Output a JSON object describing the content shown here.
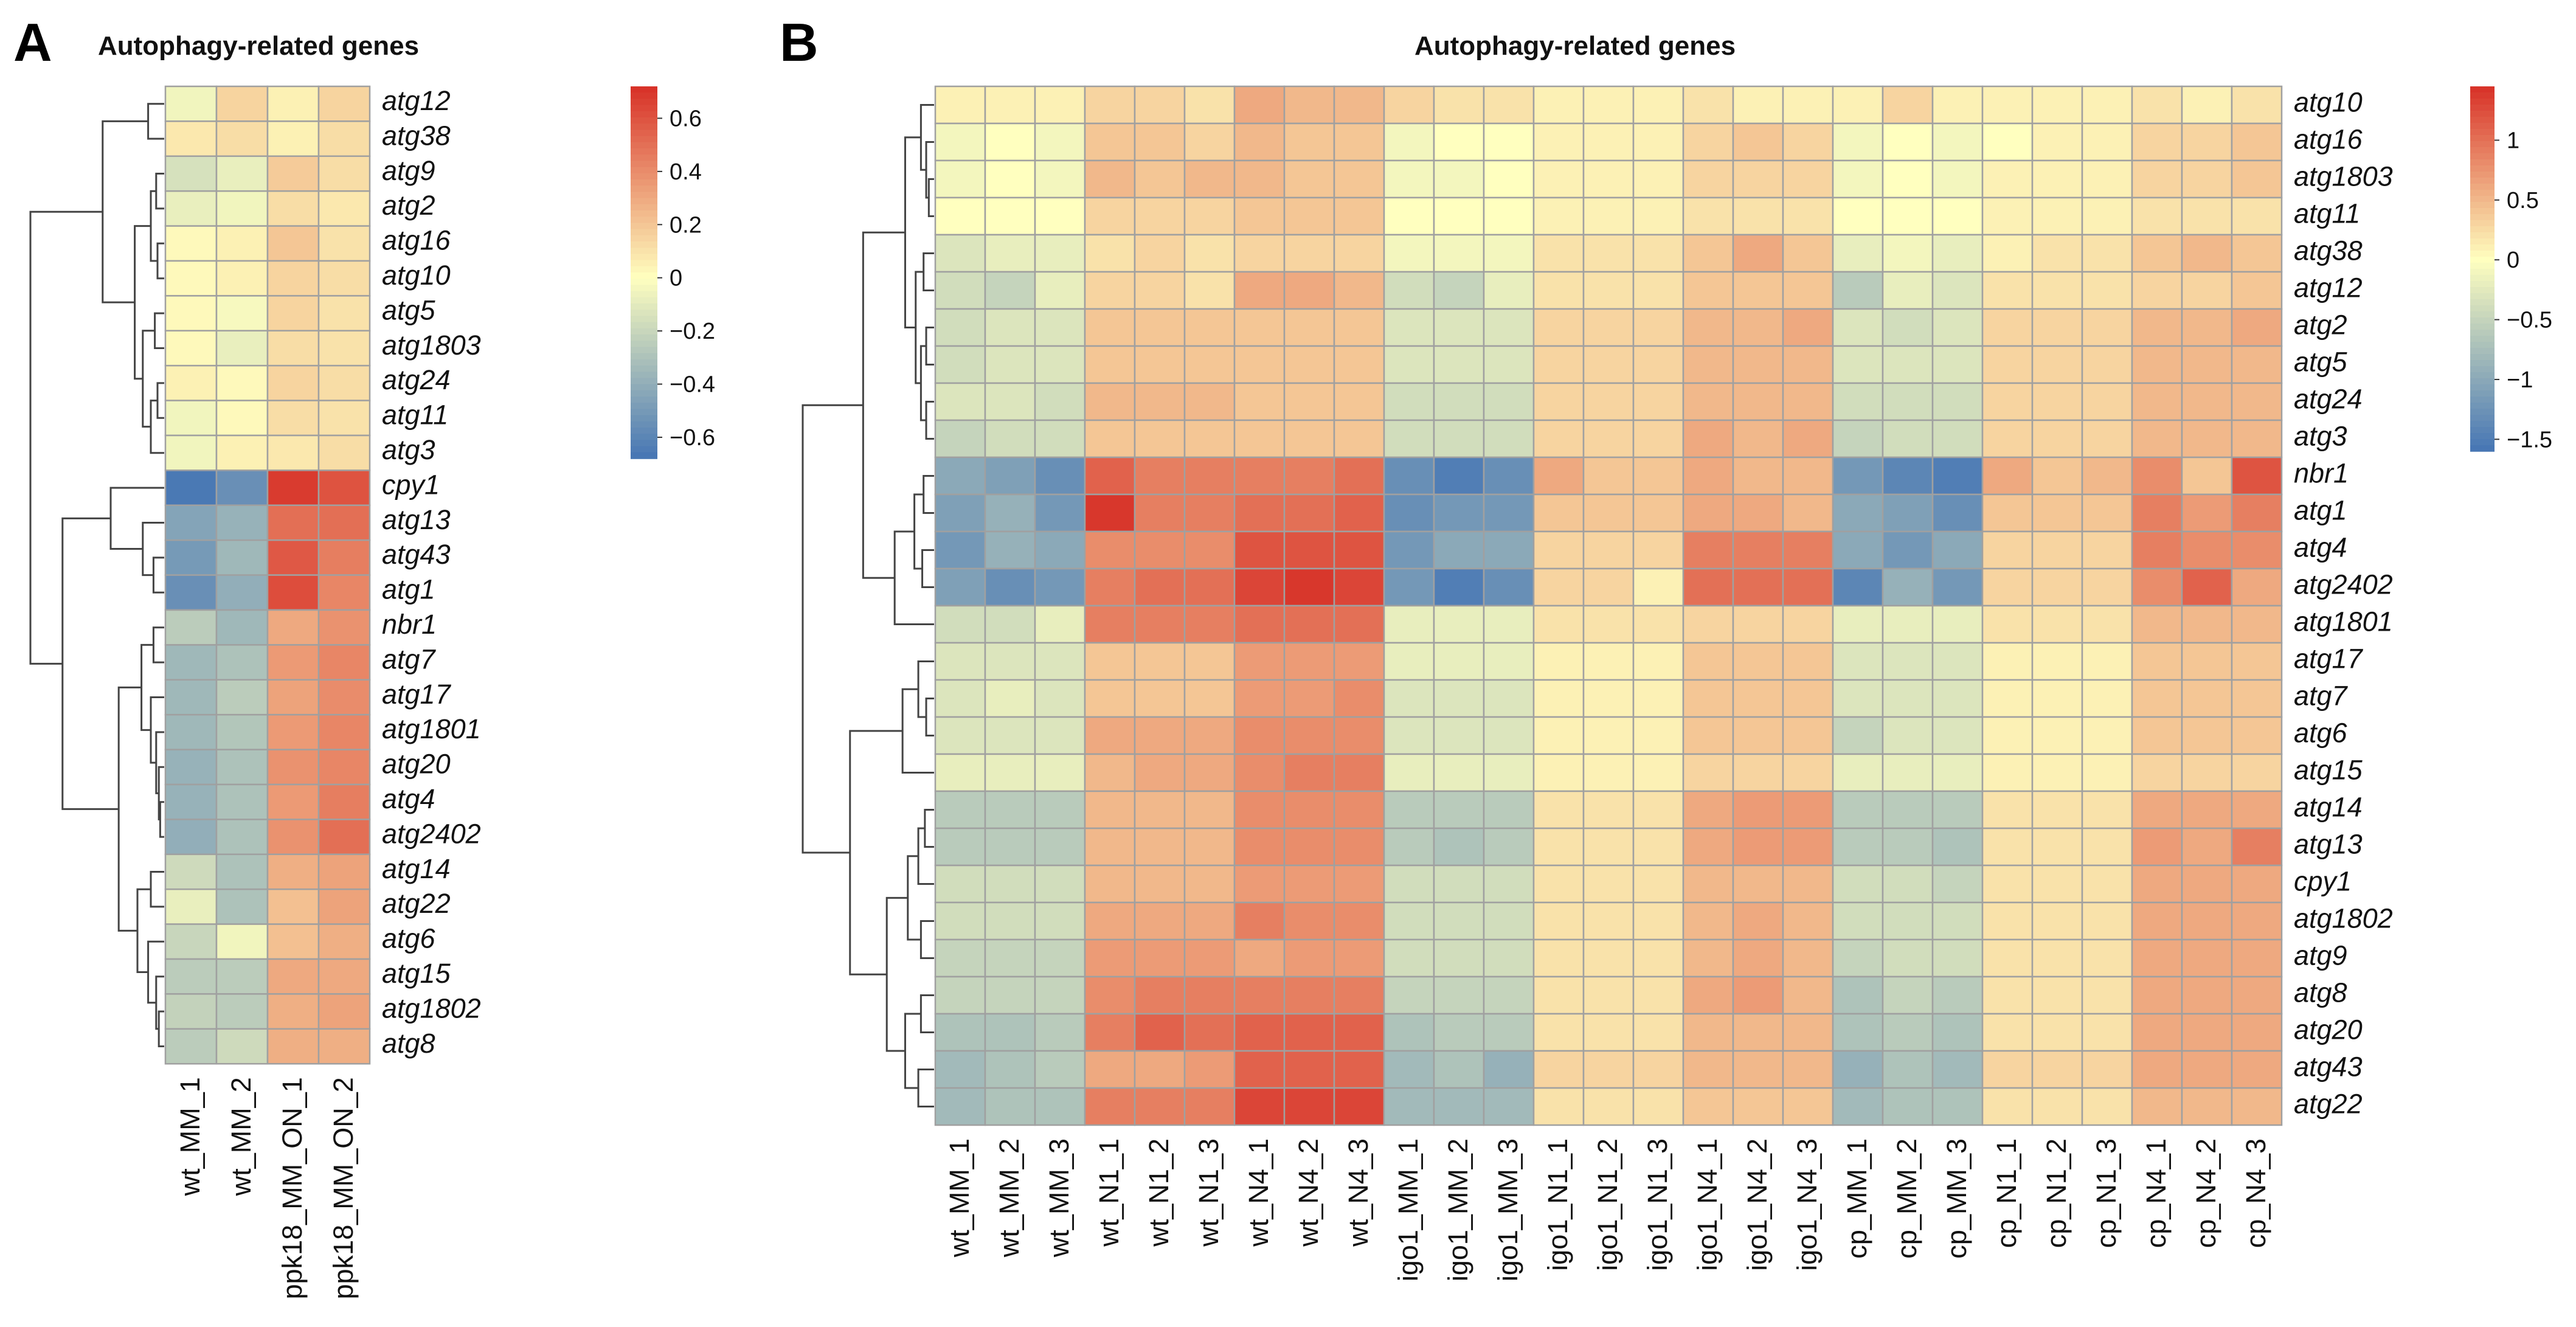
{
  "colors": {
    "low": "#4575b4",
    "mid": "#ffffbf",
    "high": "#d73027",
    "grid": "#a0a0a0",
    "dendro": "#444444"
  },
  "chart_data": [
    {
      "panel": "A",
      "type": "heatmap",
      "title": "Autophagy-related genes",
      "columns": [
        "wt_MM_1",
        "wt_MM_2",
        "ppk18_MM_ON_1",
        "ppk18_MM_ON_2"
      ],
      "rows": [
        "atg12",
        "atg38",
        "atg9",
        "atg2",
        "atg16",
        "atg10",
        "atg5",
        "atg1803",
        "atg24",
        "atg11",
        "atg3",
        "cpy1",
        "atg13",
        "atg43",
        "atg1",
        "nbr1",
        "atg7",
        "atg17",
        "atg1801",
        "atg20",
        "atg4",
        "atg2402",
        "atg14",
        "atg22",
        "atg6",
        "atg15",
        "atg1802",
        "atg8"
      ],
      "values": [
        [
          -0.05,
          0.15,
          0.05,
          0.15
        ],
        [
          0.08,
          0.12,
          0.05,
          0.12
        ],
        [
          -0.15,
          -0.08,
          0.18,
          0.12
        ],
        [
          -0.08,
          -0.05,
          0.12,
          0.08
        ],
        [
          0.02,
          0.05,
          0.2,
          0.1
        ],
        [
          0.02,
          0.05,
          0.15,
          0.12
        ],
        [
          0.02,
          -0.03,
          0.15,
          0.1
        ],
        [
          0.02,
          -0.08,
          0.12,
          0.1
        ],
        [
          0.05,
          0.02,
          0.15,
          0.12
        ],
        [
          -0.05,
          0.02,
          0.12,
          0.1
        ],
        [
          -0.05,
          0.05,
          0.08,
          0.12
        ],
        [
          -0.66,
          -0.55,
          0.68,
          0.6
        ],
        [
          -0.45,
          -0.38,
          0.5,
          0.5
        ],
        [
          -0.5,
          -0.35,
          0.58,
          0.45
        ],
        [
          -0.55,
          -0.4,
          0.62,
          0.42
        ],
        [
          -0.25,
          -0.35,
          0.3,
          0.38
        ],
        [
          -0.35,
          -0.3,
          0.35,
          0.42
        ],
        [
          -0.35,
          -0.25,
          0.32,
          0.4
        ],
        [
          -0.35,
          -0.28,
          0.35,
          0.42
        ],
        [
          -0.38,
          -0.3,
          0.38,
          0.42
        ],
        [
          -0.38,
          -0.3,
          0.35,
          0.45
        ],
        [
          -0.4,
          -0.3,
          0.38,
          0.5
        ],
        [
          -0.18,
          -0.3,
          0.28,
          0.32
        ],
        [
          -0.08,
          -0.3,
          0.22,
          0.32
        ],
        [
          -0.2,
          -0.05,
          0.22,
          0.28
        ],
        [
          -0.25,
          -0.25,
          0.3,
          0.3
        ],
        [
          -0.22,
          -0.25,
          0.28,
          0.32
        ],
        [
          -0.25,
          -0.18,
          0.28,
          0.28
        ]
      ],
      "scale": {
        "min": -0.68,
        "max": 0.72,
        "ticks": [
          0.6,
          0.4,
          0.2,
          0,
          -0.2,
          -0.4,
          -0.6
        ],
        "tick_labels": [
          "0.6",
          "0.4",
          "0.2",
          "0",
          "−0.2",
          "−0.4",
          "−0.6"
        ]
      }
    },
    {
      "panel": "B",
      "type": "heatmap",
      "title": "Autophagy-related genes",
      "columns": [
        "wt_MM_1",
        "wt_MM_2",
        "wt_MM_3",
        "wt_N1_1",
        "wt_N1_2",
        "wt_N1_3",
        "wt_N4_1",
        "wt_N4_2",
        "wt_N4_3",
        "igo1_MM_1",
        "igo1_MM_2",
        "igo1_MM_3",
        "igo1_N1_1",
        "igo1_N1_2",
        "igo1_N1_3",
        "igo1_N4_1",
        "igo1_N4_2",
        "igo1_N4_3",
        "cp_MM_1",
        "cp_MM_2",
        "cp_MM_3",
        "cp_N1_1",
        "cp_N1_2",
        "cp_N1_3",
        "cp_N4_1",
        "cp_N4_2",
        "cp_N4_3"
      ],
      "rows": [
        "atg10",
        "atg16",
        "atg1803",
        "atg11",
        "atg38",
        "atg12",
        "atg2",
        "atg5",
        "atg24",
        "atg3",
        "nbr1",
        "atg1",
        "atg4",
        "atg2402",
        "atg1801",
        "atg17",
        "atg7",
        "atg6",
        "atg15",
        "atg14",
        "atg13",
        "cpy1",
        "atg1802",
        "atg9",
        "atg8",
        "atg20",
        "atg43",
        "atg22"
      ],
      "values": [
        [
          0.1,
          0.1,
          0.1,
          0.3,
          0.3,
          0.2,
          0.6,
          0.5,
          0.5,
          0.3,
          0.2,
          0.2,
          0.1,
          0.1,
          0.1,
          0.2,
          0.1,
          0.1,
          0.1,
          0.3,
          0.1,
          0.1,
          0.1,
          0.1,
          0.2,
          0.1,
          0.2
        ],
        [
          -0.1,
          0.0,
          -0.1,
          0.4,
          0.4,
          0.3,
          0.5,
          0.4,
          0.4,
          -0.1,
          0.0,
          0.0,
          0.1,
          0.1,
          0.1,
          0.3,
          0.4,
          0.3,
          -0.1,
          0.0,
          -0.1,
          0.0,
          0.1,
          0.1,
          0.3,
          0.3,
          0.4
        ],
        [
          -0.1,
          0.0,
          -0.1,
          0.5,
          0.4,
          0.5,
          0.5,
          0.4,
          0.4,
          -0.1,
          -0.1,
          0.0,
          0.1,
          0.1,
          0.1,
          0.3,
          0.3,
          0.3,
          -0.1,
          0.0,
          -0.1,
          0.1,
          0.1,
          0.1,
          0.3,
          0.3,
          0.4
        ],
        [
          0.0,
          0.0,
          0.0,
          0.3,
          0.3,
          0.3,
          0.4,
          0.4,
          0.4,
          0.0,
          0.0,
          0.0,
          0.1,
          0.1,
          0.1,
          0.2,
          0.2,
          0.2,
          0.0,
          0.0,
          0.0,
          0.1,
          0.1,
          0.1,
          0.2,
          0.2,
          0.2
        ],
        [
          -0.3,
          -0.2,
          -0.2,
          0.2,
          0.3,
          0.2,
          0.3,
          0.3,
          0.3,
          -0.1,
          -0.1,
          -0.1,
          0.2,
          0.2,
          0.2,
          0.4,
          0.6,
          0.4,
          -0.2,
          -0.1,
          -0.2,
          0.1,
          0.2,
          0.2,
          0.4,
          0.5,
          0.4
        ],
        [
          -0.4,
          -0.5,
          -0.2,
          0.3,
          0.3,
          0.2,
          0.6,
          0.6,
          0.5,
          -0.4,
          -0.5,
          -0.2,
          0.2,
          0.2,
          0.2,
          0.4,
          0.4,
          0.4,
          -0.6,
          -0.2,
          -0.3,
          0.2,
          0.2,
          0.2,
          0.3,
          0.3,
          0.4
        ],
        [
          -0.4,
          -0.3,
          -0.3,
          0.4,
          0.4,
          0.4,
          0.4,
          0.4,
          0.4,
          -0.3,
          -0.3,
          -0.3,
          0.3,
          0.3,
          0.3,
          0.5,
          0.5,
          0.6,
          -0.3,
          -0.4,
          -0.3,
          0.3,
          0.3,
          0.3,
          0.5,
          0.5,
          0.6
        ],
        [
          -0.4,
          -0.3,
          -0.3,
          0.4,
          0.4,
          0.4,
          0.4,
          0.4,
          0.4,
          -0.3,
          -0.3,
          -0.3,
          0.3,
          0.3,
          0.3,
          0.5,
          0.5,
          0.5,
          -0.3,
          -0.3,
          -0.3,
          0.3,
          0.3,
          0.3,
          0.5,
          0.5,
          0.5
        ],
        [
          -0.3,
          -0.3,
          -0.4,
          0.5,
          0.5,
          0.5,
          0.4,
          0.4,
          0.4,
          -0.4,
          -0.4,
          -0.4,
          0.3,
          0.3,
          0.3,
          0.5,
          0.5,
          0.5,
          -0.4,
          -0.4,
          -0.4,
          0.3,
          0.3,
          0.3,
          0.5,
          0.5,
          0.5
        ],
        [
          -0.5,
          -0.4,
          -0.4,
          0.4,
          0.4,
          0.4,
          0.4,
          0.4,
          0.4,
          -0.4,
          -0.4,
          -0.4,
          0.3,
          0.3,
          0.3,
          0.6,
          0.5,
          0.6,
          -0.5,
          -0.4,
          -0.4,
          0.3,
          0.3,
          0.3,
          0.5,
          0.5,
          0.5
        ],
        [
          -1.0,
          -1.1,
          -1.3,
          1.1,
          0.9,
          0.9,
          0.9,
          0.9,
          1.0,
          -1.3,
          -1.5,
          -1.3,
          0.6,
          0.4,
          0.4,
          0.6,
          0.5,
          0.5,
          -1.2,
          -1.4,
          -1.5,
          0.6,
          0.4,
          0.5,
          0.8,
          0.4,
          1.2
        ],
        [
          -1.1,
          -0.9,
          -1.2,
          1.4,
          0.9,
          0.9,
          1.0,
          1.0,
          1.1,
          -1.3,
          -1.2,
          -1.2,
          0.4,
          0.4,
          0.4,
          0.6,
          0.6,
          0.5,
          -1.0,
          -1.1,
          -1.3,
          0.4,
          0.4,
          0.4,
          0.9,
          0.7,
          0.9
        ],
        [
          -1.2,
          -0.9,
          -1.0,
          0.8,
          0.8,
          0.8,
          1.2,
          1.2,
          1.2,
          -1.2,
          -1.0,
          -1.0,
          0.3,
          0.3,
          0.3,
          0.9,
          0.9,
          0.9,
          -1.0,
          -1.2,
          -1.0,
          0.3,
          0.3,
          0.3,
          0.9,
          0.8,
          0.8
        ],
        [
          -1.1,
          -1.3,
          -1.2,
          0.9,
          1.0,
          1.0,
          1.3,
          1.4,
          1.3,
          -1.2,
          -1.5,
          -1.3,
          0.3,
          0.3,
          0.1,
          1.0,
          1.0,
          1.0,
          -1.4,
          -0.9,
          -1.2,
          0.3,
          0.3,
          0.3,
          0.8,
          1.1,
          0.6
        ],
        [
          -0.4,
          -0.4,
          -0.2,
          0.9,
          0.9,
          0.9,
          1.0,
          1.0,
          1.0,
          -0.2,
          -0.2,
          -0.2,
          0.2,
          0.2,
          0.2,
          0.3,
          0.3,
          0.3,
          -0.2,
          -0.2,
          -0.2,
          0.2,
          0.2,
          0.2,
          0.5,
          0.5,
          0.5
        ],
        [
          -0.3,
          -0.3,
          -0.3,
          0.4,
          0.4,
          0.4,
          0.7,
          0.7,
          0.7,
          -0.2,
          -0.2,
          -0.2,
          0.1,
          0.1,
          0.1,
          0.4,
          0.4,
          0.4,
          -0.3,
          -0.3,
          -0.3,
          0.1,
          0.1,
          0.1,
          0.4,
          0.4,
          0.4
        ],
        [
          -0.3,
          -0.2,
          -0.3,
          0.4,
          0.4,
          0.4,
          0.7,
          0.7,
          0.8,
          -0.3,
          -0.3,
          -0.3,
          0.1,
          0.1,
          0.1,
          0.4,
          0.4,
          0.4,
          -0.3,
          -0.3,
          -0.3,
          0.1,
          0.1,
          0.1,
          0.4,
          0.4,
          0.4
        ],
        [
          -0.3,
          -0.3,
          -0.3,
          0.6,
          0.6,
          0.6,
          0.8,
          0.8,
          0.8,
          -0.3,
          -0.3,
          -0.3,
          0.1,
          0.1,
          0.1,
          0.4,
          0.4,
          0.4,
          -0.5,
          -0.3,
          -0.3,
          0.1,
          0.1,
          0.1,
          0.4,
          0.4,
          0.4
        ],
        [
          -0.2,
          -0.2,
          -0.2,
          0.5,
          0.6,
          0.6,
          0.8,
          0.9,
          0.9,
          -0.2,
          -0.2,
          -0.2,
          0.1,
          0.1,
          0.1,
          0.3,
          0.3,
          0.3,
          -0.2,
          -0.2,
          -0.2,
          0.1,
          0.1,
          0.1,
          0.3,
          0.3,
          0.3
        ],
        [
          -0.6,
          -0.6,
          -0.6,
          0.5,
          0.5,
          0.5,
          0.8,
          0.8,
          0.8,
          -0.6,
          -0.6,
          -0.6,
          0.2,
          0.2,
          0.2,
          0.6,
          0.7,
          0.7,
          -0.6,
          -0.6,
          -0.6,
          0.2,
          0.2,
          0.2,
          0.6,
          0.6,
          0.6
        ],
        [
          -0.6,
          -0.6,
          -0.6,
          0.5,
          0.5,
          0.5,
          0.8,
          0.8,
          0.8,
          -0.6,
          -0.7,
          -0.6,
          0.2,
          0.2,
          0.2,
          0.6,
          0.7,
          0.7,
          -0.6,
          -0.6,
          -0.7,
          0.2,
          0.2,
          0.2,
          0.7,
          0.6,
          0.9
        ],
        [
          -0.4,
          -0.4,
          -0.4,
          0.5,
          0.5,
          0.5,
          0.7,
          0.7,
          0.7,
          -0.4,
          -0.4,
          -0.4,
          0.2,
          0.2,
          0.2,
          0.5,
          0.5,
          0.5,
          -0.4,
          -0.4,
          -0.5,
          0.2,
          0.2,
          0.2,
          0.6,
          0.6,
          0.6
        ],
        [
          -0.4,
          -0.4,
          -0.4,
          0.6,
          0.6,
          0.6,
          0.9,
          0.8,
          0.8,
          -0.4,
          -0.4,
          -0.4,
          0.2,
          0.2,
          0.2,
          0.5,
          0.6,
          0.5,
          -0.4,
          -0.4,
          -0.4,
          0.2,
          0.2,
          0.2,
          0.6,
          0.6,
          0.6
        ],
        [
          -0.5,
          -0.5,
          -0.5,
          0.7,
          0.7,
          0.7,
          0.6,
          0.7,
          0.7,
          -0.4,
          -0.4,
          -0.4,
          0.2,
          0.2,
          0.2,
          0.5,
          0.6,
          0.5,
          -0.5,
          -0.4,
          -0.4,
          0.2,
          0.2,
          0.2,
          0.6,
          0.6,
          0.6
        ],
        [
          -0.5,
          -0.5,
          -0.5,
          0.8,
          0.9,
          0.9,
          0.9,
          0.9,
          0.9,
          -0.5,
          -0.5,
          -0.5,
          0.2,
          0.2,
          0.2,
          0.6,
          0.7,
          0.5,
          -0.7,
          -0.5,
          -0.6,
          0.2,
          0.2,
          0.2,
          0.6,
          0.6,
          0.6
        ],
        [
          -0.7,
          -0.7,
          -0.6,
          0.9,
          1.1,
          1.0,
          1.1,
          1.1,
          1.1,
          -0.7,
          -0.6,
          -0.6,
          0.2,
          0.2,
          0.2,
          0.5,
          0.5,
          0.5,
          -0.7,
          -0.6,
          -0.7,
          0.2,
          0.2,
          0.2,
          0.6,
          0.6,
          0.6
        ],
        [
          -0.8,
          -0.7,
          -0.6,
          0.6,
          0.6,
          0.7,
          1.1,
          1.1,
          1.1,
          -0.8,
          -0.7,
          -0.9,
          0.3,
          0.3,
          0.3,
          0.5,
          0.5,
          0.5,
          -0.9,
          -0.7,
          -0.8,
          0.3,
          0.3,
          0.3,
          0.6,
          0.6,
          0.6
        ],
        [
          -0.8,
          -0.7,
          -0.7,
          0.9,
          0.9,
          0.9,
          1.3,
          1.3,
          1.3,
          -0.8,
          -0.8,
          -0.8,
          0.2,
          0.2,
          0.2,
          0.4,
          0.4,
          0.4,
          -0.8,
          -0.7,
          -0.7,
          0.2,
          0.2,
          0.2,
          0.5,
          0.5,
          0.5
        ]
      ],
      "scale": {
        "min": -1.6,
        "max": 1.45,
        "ticks": [
          1,
          0.5,
          0,
          -0.5,
          -1,
          -1.5
        ],
        "tick_labels": [
          "1",
          "0.5",
          "0",
          "−0.5",
          "−1",
          "−1.5"
        ]
      }
    }
  ]
}
